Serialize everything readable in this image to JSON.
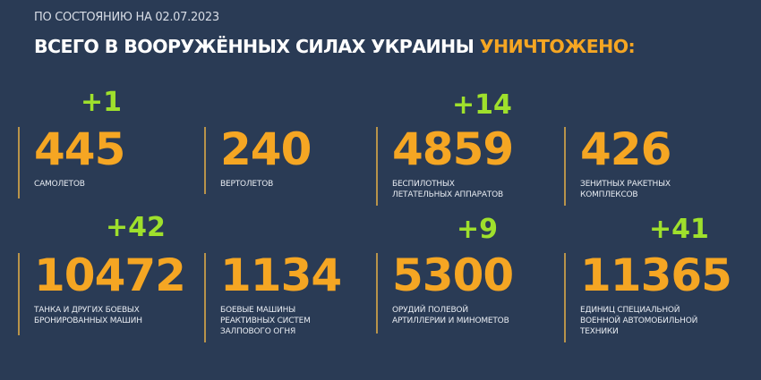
{
  "header": {
    "date_line": "ПО СОСТОЯНИЮ НА 02.07.2023",
    "title_main": "ВСЕГО В ВООРУЖЁННЫХ СИЛАХ УКРАИНЫ",
    "title_highlight": "УНИЧТОЖЕНО:"
  },
  "colors": {
    "background": "#2a3b55",
    "number": "#f5a623",
    "delta": "#9fe02c",
    "divider": "#b8934a"
  },
  "stats": [
    {
      "value": "445",
      "delta": "+1",
      "label": [
        "САМОЛЕТОВ"
      ]
    },
    {
      "value": "240",
      "delta": "",
      "label": [
        "ВЕРТОЛЕТОВ"
      ]
    },
    {
      "value": "4859",
      "delta": "+14",
      "label": [
        "БЕСПИЛОТНЫХ",
        "ЛЕТАТЕЛЬНЫХ АППАРАТОВ"
      ]
    },
    {
      "value": "426",
      "delta": "",
      "label": [
        "ЗЕНИТНЫХ РАКЕТНЫХ",
        "КОМПЛЕКСОВ"
      ]
    },
    {
      "value": "10472",
      "delta": "+42",
      "label": [
        "ТАНКА И ДРУГИХ БОЕВЫХ",
        "БРОНИРОВАННЫХ МАШИН"
      ]
    },
    {
      "value": "1134",
      "delta": "",
      "label": [
        "БОЕВЫЕ МАШИНЫ",
        "РЕАКТИВНЫХ СИСТЕМ",
        "ЗАЛПОВОГО ОГНЯ"
      ]
    },
    {
      "value": "5300",
      "delta": "+9",
      "label": [
        "ОРУДИЙ ПОЛЕВОЙ",
        "АРТИЛЛЕРИИ И МИНОМЕТОВ"
      ]
    },
    {
      "value": "11365",
      "delta": "+41",
      "label": [
        "ЕДИНИЦ СПЕЦИАЛЬНОЙ",
        "ВОЕННОЙ АВТОМОБИЛЬНОЙ",
        "ТЕХНИКИ"
      ]
    }
  ]
}
